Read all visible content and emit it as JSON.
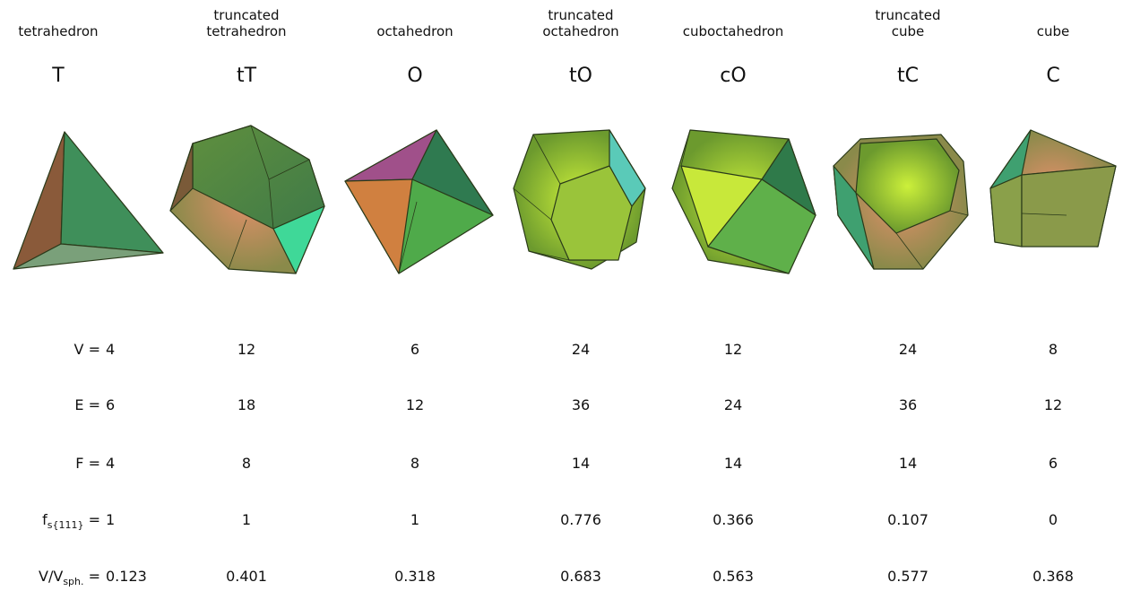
{
  "columns": [
    {
      "name": [
        "tetrahedron"
      ],
      "symbol": "T"
    },
    {
      "name": [
        "truncated",
        "tetrahedron"
      ],
      "symbol": "tT"
    },
    {
      "name": [
        "octahedron"
      ],
      "symbol": "O"
    },
    {
      "name": [
        "truncated",
        "octahedron"
      ],
      "symbol": "tO"
    },
    {
      "name": [
        "cuboctahedron"
      ],
      "symbol": "cO"
    },
    {
      "name": [
        "truncated",
        "cube"
      ],
      "symbol": "tC"
    },
    {
      "name": [
        "cube"
      ],
      "symbol": "C"
    }
  ],
  "rows": [
    {
      "label": {
        "main": "V",
        "suffix": "="
      },
      "values": [
        4,
        12,
        6,
        24,
        12,
        24,
        8
      ]
    },
    {
      "label": {
        "main": "E",
        "suffix": "="
      },
      "values": [
        6,
        18,
        12,
        36,
        24,
        36,
        12
      ]
    },
    {
      "label": {
        "main": "F",
        "suffix": "="
      },
      "values": [
        4,
        8,
        8,
        14,
        14,
        14,
        6
      ]
    },
    {
      "label": {
        "main": "f",
        "sub": "s{111}",
        "suffix": "="
      },
      "values": [
        1,
        1,
        1,
        0.776,
        0.366,
        0.107,
        0
      ]
    },
    {
      "label": {
        "main": "V/V",
        "sub": "sph.",
        "suffix": "="
      },
      "values": [
        0.123,
        0.401,
        0.318,
        0.683,
        0.563,
        0.577,
        0.368
      ]
    }
  ]
}
